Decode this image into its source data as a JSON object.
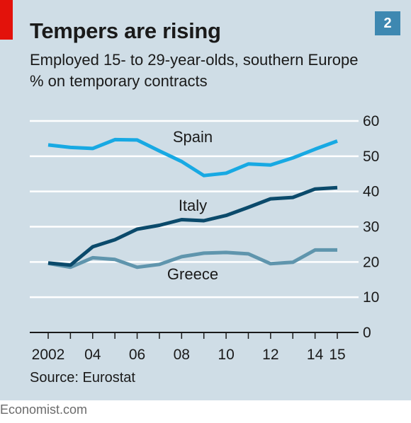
{
  "header": {
    "title": "Tempers are rising",
    "subtitle_line1": "Employed 15- to 29-year-olds, southern Europe",
    "subtitle_line2": "% on temporary contracts",
    "chart_number": "2"
  },
  "footer": {
    "source": "Source: Eurostat",
    "credit": "Economist.com"
  },
  "colors": {
    "background": "#cfdde6",
    "spain": "#18a9e3",
    "italy": "#0b4a6b",
    "greece": "#5f95ad",
    "brand_red": "#e3120b"
  },
  "chart_data": {
    "type": "line",
    "title": "Tempers are rising",
    "subtitle": "Employed 15- to 29-year-olds, southern Europe, % on temporary contracts",
    "x": [
      2002,
      2003,
      2004,
      2005,
      2006,
      2007,
      2008,
      2009,
      2010,
      2011,
      2012,
      2013,
      2014,
      2015
    ],
    "x_tick_values": [
      2002,
      2004,
      2006,
      2008,
      2010,
      2012,
      2014,
      2015
    ],
    "x_tick_labels": [
      "2002",
      "04",
      "06",
      "08",
      "10",
      "12",
      "14",
      "15"
    ],
    "y_ticks": [
      0,
      10,
      20,
      30,
      40,
      50,
      60
    ],
    "ylim": [
      0,
      60
    ],
    "grid": true,
    "y_axis_side": "right",
    "series": [
      {
        "name": "Spain",
        "color_key": "spain",
        "values": [
          53.2,
          52.5,
          52.2,
          54.7,
          54.6,
          51.5,
          48.5,
          44.5,
          45.2,
          47.8,
          47.5,
          49.5,
          52.0,
          54.3
        ]
      },
      {
        "name": "Italy",
        "color_key": "italy",
        "values": [
          19.7,
          19.1,
          24.3,
          26.3,
          29.3,
          30.4,
          32.0,
          31.7,
          33.2,
          35.5,
          37.9,
          38.3,
          40.7,
          41.1
        ]
      },
      {
        "name": "Greece",
        "color_key": "greece",
        "values": [
          19.6,
          18.5,
          21.2,
          20.7,
          18.5,
          19.3,
          21.5,
          22.5,
          22.7,
          22.3,
          19.5,
          19.9,
          23.4,
          23.4
        ]
      }
    ]
  }
}
